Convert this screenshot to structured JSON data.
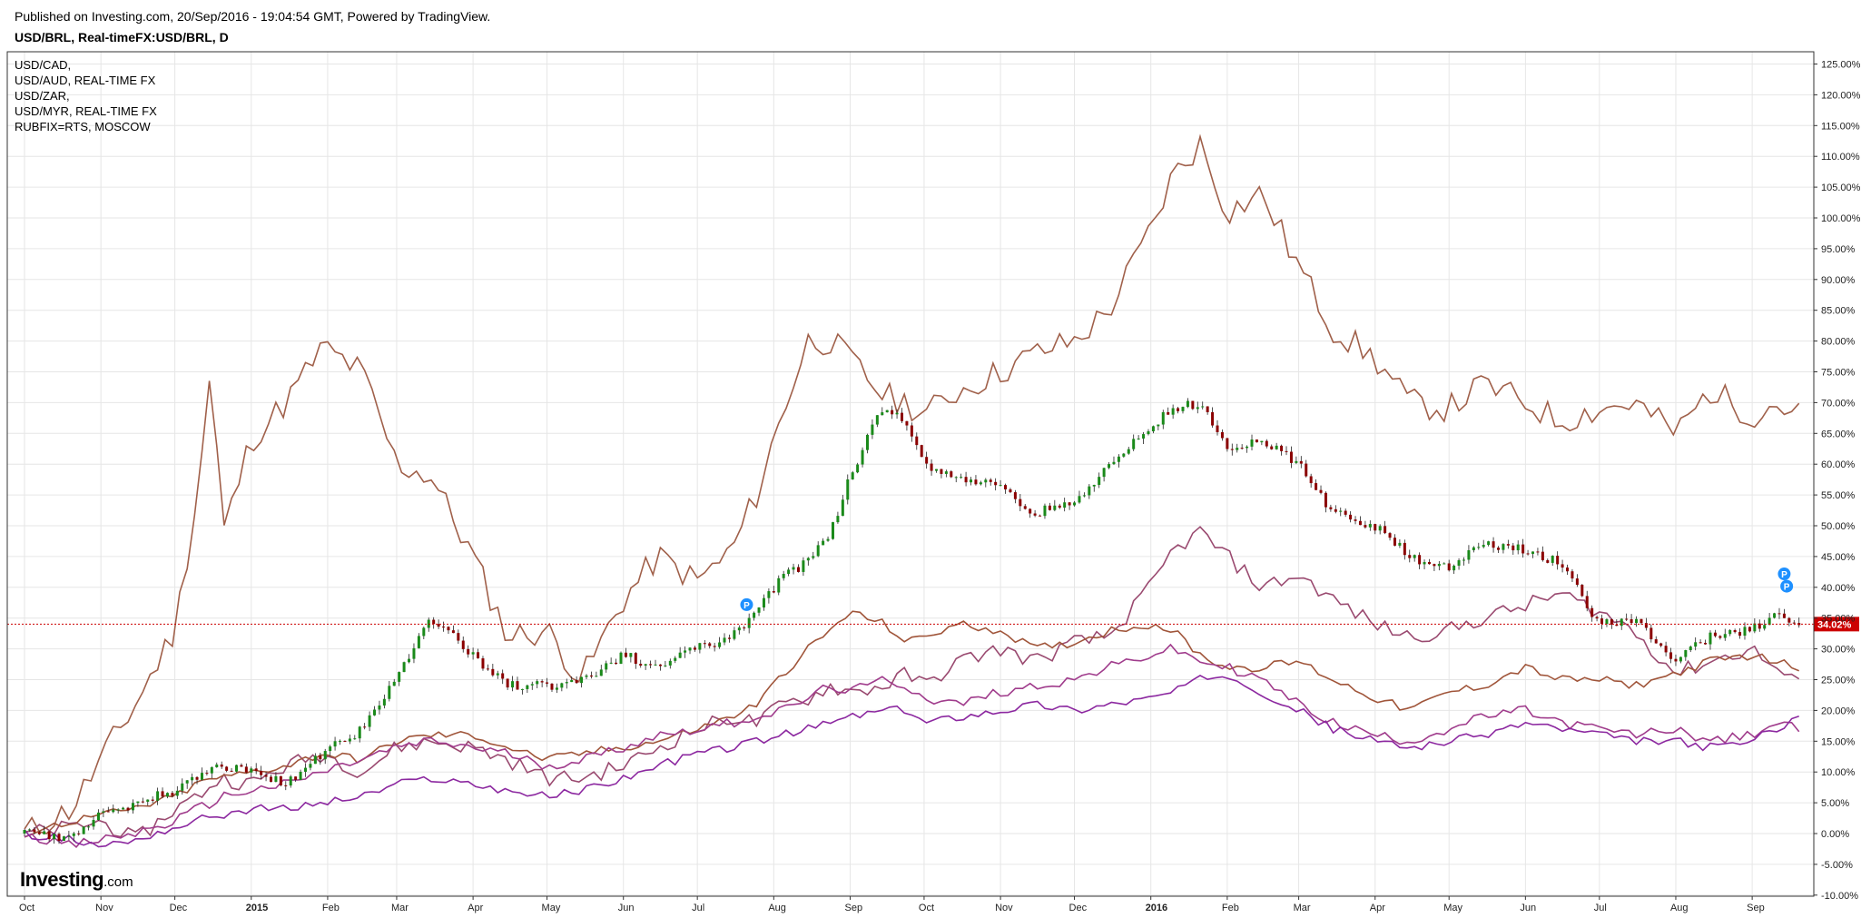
{
  "header": {
    "published": "Published on Investing.com, 20/Sep/2016 - 19:04:54 GMT, Powered by TradingView.",
    "title": "USD/BRL, Real-timeFX:USD/BRL, D"
  },
  "legend": [
    "USD/CAD,",
    "USD/AUD, REAL-TIME FX",
    "USD/ZAR,",
    "USD/MYR, REAL-TIME FX",
    "RUBFIX=RTS, MOSCOW"
  ],
  "logo": {
    "brand": "Investing",
    "domain": ".com"
  },
  "last_value_label": "34.02%",
  "markers": [
    "P",
    "P",
    "P"
  ],
  "colors": {
    "candle_up": "#1a8a1a",
    "candle_down": "#8b0000",
    "rub": "#a0604a",
    "zar": "#9a4a70",
    "cad": "#a0553a",
    "aud": "#a03c8c",
    "myr": "#8c28a0",
    "grid": "#e6e6e6",
    "last_line": "#cc0000",
    "marker": "#1e90ff"
  },
  "chart_data": {
    "type": "line",
    "title": "USD/BRL, Real-timeFX:USD/BRL, D",
    "x_ticks": [
      "Oct",
      "Nov",
      "Dec",
      "2015",
      "Feb",
      "Mar",
      "Apr",
      "May",
      "Jun",
      "Jul",
      "Aug",
      "Sep",
      "Oct",
      "Nov",
      "Dec",
      "2016",
      "Feb",
      "Mar",
      "Apr",
      "May",
      "Jun",
      "Jul",
      "Aug",
      "Sep"
    ],
    "y_ticks": [
      "125.00%",
      "120.00%",
      "115.00%",
      "110.00%",
      "105.00%",
      "100.00%",
      "95.00%",
      "90.00%",
      "85.00%",
      "80.00%",
      "75.00%",
      "70.00%",
      "65.00%",
      "60.00%",
      "55.00%",
      "50.00%",
      "45.00%",
      "40.00%",
      "35.00%",
      "30.00%",
      "25.00%",
      "20.00%",
      "15.00%",
      "10.00%",
      "5.00%",
      "0.00%",
      "-5.00%",
      "-10.00%"
    ],
    "ylim": [
      -10,
      127
    ],
    "x": [
      "2014-10-01",
      "2014-10-20",
      "2014-11-01",
      "2014-11-15",
      "2014-12-01",
      "2014-12-10",
      "2014-12-16",
      "2014-12-20",
      "2015-01-01",
      "2015-01-15",
      "2015-01-30",
      "2015-02-15",
      "2015-03-01",
      "2015-03-15",
      "2015-04-01",
      "2015-04-15",
      "2015-05-01",
      "2015-05-15",
      "2015-06-01",
      "2015-06-15",
      "2015-07-01",
      "2015-07-15",
      "2015-07-25",
      "2015-08-05",
      "2015-08-15",
      "2015-08-24",
      "2015-09-01",
      "2015-09-15",
      "2015-09-24",
      "2015-10-01",
      "2015-10-15",
      "2015-11-01",
      "2015-11-15",
      "2015-12-01",
      "2015-12-15",
      "2016-01-01",
      "2016-01-10",
      "2016-01-21",
      "2016-02-01",
      "2016-02-15",
      "2016-03-01",
      "2016-03-15",
      "2016-04-01",
      "2016-04-15",
      "2016-05-01",
      "2016-05-15",
      "2016-06-01",
      "2016-06-15",
      "2016-07-01",
      "2016-07-15",
      "2016-08-01",
      "2016-08-15",
      "2016-09-01",
      "2016-09-10",
      "2016-09-20"
    ],
    "series": [
      {
        "name": "USD/BRL, Real-timeFX:USD/BRL, D",
        "values": [
          0,
          -1,
          3,
          5,
          7,
          9,
          11,
          11,
          10,
          8,
          13,
          17,
          25,
          35,
          29,
          24,
          24,
          25,
          29,
          27,
          30,
          32,
          36,
          42,
          44,
          49,
          58,
          70,
          66,
          60,
          58,
          56,
          52,
          54,
          60,
          66,
          69,
          70,
          62,
          64,
          60,
          52,
          50,
          45,
          43,
          47,
          46,
          44,
          34,
          35,
          28,
          32,
          33,
          36,
          34.02
        ]
      },
      {
        "name": "RUBFIX=RTS, MOSCOW",
        "values": [
          0,
          4,
          12,
          21,
          33,
          55,
          77,
          48,
          64,
          70,
          79,
          75,
          60,
          58,
          45,
          32,
          33,
          25,
          38,
          45,
          41,
          46,
          55,
          69,
          80,
          80,
          77,
          71,
          70,
          68,
          72,
          75,
          78,
          80,
          85,
          98,
          107,
          112,
          101,
          104,
          92,
          82,
          77,
          70,
          69,
          73,
          70,
          67,
          69,
          70,
          65,
          72,
          68,
          70,
          68
        ]
      },
      {
        "name": "USD/ZAR,",
        "values": [
          0,
          1,
          2,
          -1,
          4,
          6,
          8,
          9,
          8,
          11,
          13,
          10,
          14,
          15,
          14,
          12,
          9,
          9,
          11,
          14,
          17,
          19,
          18,
          21,
          22,
          24,
          23,
          24,
          26,
          24,
          28,
          30,
          28,
          31,
          32,
          40,
          46,
          49,
          45,
          40,
          42,
          38,
          34,
          32,
          33,
          35,
          37,
          39,
          36,
          33,
          26,
          28,
          30,
          27,
          24
        ]
      },
      {
        "name": "USD/CAD,",
        "values": [
          0,
          2,
          3,
          4,
          6,
          8,
          9,
          9,
          10,
          11,
          13,
          12,
          15,
          16,
          16,
          14,
          12,
          13,
          14,
          15,
          17,
          19,
          21,
          26,
          30,
          33,
          36,
          34,
          31,
          32,
          34,
          33,
          30,
          31,
          33,
          34,
          33,
          29,
          27,
          27,
          28,
          25,
          22,
          20,
          23,
          24,
          27,
          25,
          25,
          24,
          26,
          28,
          29,
          28,
          27
        ]
      },
      {
        "name": "USD/AUD, REAL-TIME FX",
        "values": [
          0,
          -2,
          -1,
          0,
          2,
          4,
          5,
          6,
          7,
          8,
          10,
          12,
          14,
          15,
          14,
          13,
          11,
          12,
          14,
          16,
          17,
          18,
          19,
          20,
          22,
          24,
          23,
          25,
          24,
          22,
          21,
          23,
          24,
          25,
          27,
          29,
          30,
          28,
          27,
          25,
          21,
          18,
          16,
          15,
          17,
          19,
          20,
          18,
          17,
          16,
          17,
          15,
          16,
          18,
          17
        ]
      },
      {
        "name": "USD/MYR, REAL-TIME FX",
        "values": [
          0,
          -1,
          -2,
          -1,
          1,
          2,
          3,
          3,
          4,
          4,
          5,
          6,
          8,
          9,
          8,
          7,
          6,
          7,
          9,
          11,
          13,
          14,
          15,
          16,
          17,
          18,
          19,
          20,
          20,
          18,
          19,
          20,
          21,
          20,
          21,
          22,
          23,
          25,
          26,
          23,
          20,
          17,
          15,
          14,
          15,
          16,
          18,
          17,
          16,
          15,
          15,
          14,
          15,
          17,
          19
        ]
      }
    ]
  }
}
